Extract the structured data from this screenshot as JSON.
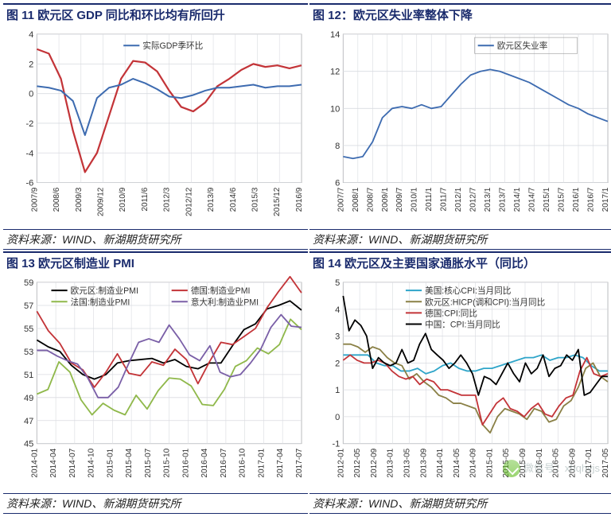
{
  "source_label": "资料来源：WIND、新湖期货研究所",
  "watermark": "微信号：xhqhyjs",
  "charts": {
    "c11": {
      "title": "图 11 欧元区 GDP 同比和环比均有所回升",
      "type": "line",
      "legend": [
        {
          "label": "实际GDP季环比",
          "color": "#3d6bb0"
        }
      ],
      "xticks": [
        "2007/9",
        "2008/6",
        "2009/3",
        "2009/12",
        "2010/9",
        "2011/6",
        "2012/3",
        "2012/12",
        "2013/9",
        "2014/6",
        "2015/3",
        "2015/12",
        "2016/9"
      ],
      "ylim": [
        -6,
        4
      ],
      "ytick_step": 2,
      "grid_color": "#d9dbe0",
      "axis_color": "#666",
      "bg": "#ffffff",
      "series": [
        {
          "name": "red",
          "color": "#c33438",
          "width": 2.2,
          "data": [
            3.0,
            2.7,
            1.0,
            -2.5,
            -5.3,
            -4.0,
            -1.5,
            1.0,
            2.2,
            2.1,
            1.5,
            0.2,
            -0.9,
            -1.2,
            -0.6,
            0.5,
            1.0,
            1.6,
            2.0,
            1.8,
            1.9,
            1.7,
            1.9
          ]
        },
        {
          "name": "blue",
          "color": "#3d6bb0",
          "width": 2.0,
          "data": [
            0.5,
            0.4,
            0.2,
            -0.5,
            -2.8,
            -0.3,
            0.4,
            0.6,
            1.0,
            0.7,
            0.3,
            -0.2,
            -0.3,
            -0.1,
            0.2,
            0.4,
            0.4,
            0.5,
            0.6,
            0.4,
            0.5,
            0.5,
            0.6
          ]
        }
      ]
    },
    "c12": {
      "title": "图 12：欧元区失业率整体下降",
      "type": "line",
      "legend": [
        {
          "label": "欧元区失业率",
          "color": "#3d6bb0"
        }
      ],
      "xticks": [
        "2007/7",
        "2008/1",
        "2008/7",
        "2009/1",
        "2009/7",
        "2010/1",
        "2011/1",
        "2011/7",
        "2012/1",
        "2012/7",
        "2013/1",
        "2013/7",
        "2014/1",
        "2014/7",
        "2015/1",
        "2015/7",
        "2016/1",
        "2016/7",
        "2017/1"
      ],
      "ylim": [
        6,
        14
      ],
      "ytick_step": 2,
      "grid_color": "#d9dbe0",
      "axis_color": "#666",
      "bg": "#ffffff",
      "series": [
        {
          "name": "u",
          "color": "#3d6bb0",
          "width": 1.8,
          "data": [
            7.4,
            7.3,
            7.4,
            8.2,
            9.5,
            10.0,
            10.1,
            10.0,
            10.2,
            10.0,
            10.1,
            10.7,
            11.3,
            11.8,
            12.0,
            12.1,
            12.0,
            11.8,
            11.6,
            11.4,
            11.1,
            10.8,
            10.5,
            10.2,
            10.0,
            9.7,
            9.5,
            9.3
          ]
        }
      ]
    },
    "c13": {
      "title": "图 13 欧元区制造业 PMI",
      "type": "line",
      "legend": [
        {
          "label": "欧元区:制造业PMI",
          "color": "#000"
        },
        {
          "label": "德国:制造业PMI",
          "color": "#c33438"
        },
        {
          "label": "法国:制造业PMI",
          "color": "#8fb84a"
        },
        {
          "label": "意大利:制造业PMI",
          "color": "#7a5fa7"
        }
      ],
      "xticks": [
        "2014-01",
        "2014-04",
        "2014-07",
        "2014-10",
        "2015-01",
        "2015-04",
        "2015-07",
        "2015-10",
        "2016-01",
        "2016-04",
        "2016-07",
        "2016-10",
        "2017-01",
        "2017-04",
        "2017-07"
      ],
      "ylim": [
        45,
        59
      ],
      "ytick_step": 2,
      "grid_color": "#d9dbe0",
      "axis_color": "#666",
      "bg": "#ffffff",
      "series": [
        {
          "color": "#000",
          "width": 1.8,
          "data": [
            54.0,
            53.4,
            53.0,
            51.8,
            51.0,
            50.6,
            51.0,
            52.0,
            52.2,
            52.3,
            52.4,
            52.0,
            52.3,
            51.7,
            51.5,
            52.0,
            52.0,
            53.5,
            54.9,
            55.4,
            56.7,
            57.0,
            57.4,
            56.6
          ]
        },
        {
          "color": "#c33438",
          "width": 1.8,
          "data": [
            56.5,
            54.8,
            53.7,
            52.0,
            51.4,
            49.9,
            51.2,
            52.8,
            51.1,
            50.9,
            52.1,
            51.8,
            53.2,
            52.3,
            50.2,
            52.1,
            53.8,
            53.6,
            54.3,
            55.0,
            56.8,
            58.2,
            59.5,
            58.1
          ]
        },
        {
          "color": "#8fb84a",
          "width": 1.8,
          "data": [
            49.3,
            49.7,
            52.1,
            51.2,
            48.8,
            47.5,
            48.5,
            47.9,
            47.5,
            49.2,
            48.0,
            49.6,
            50.7,
            50.6,
            50.0,
            48.4,
            48.3,
            49.7,
            51.7,
            52.2,
            53.3,
            52.8,
            53.6,
            55.8,
            54.9
          ]
        },
        {
          "color": "#7a5fa7",
          "width": 1.8,
          "data": [
            53.1,
            53.1,
            52.6,
            52.2,
            51.9,
            50.7,
            49.0,
            49.0,
            49.9,
            51.9,
            53.8,
            54.1,
            53.8,
            55.3,
            54.1,
            52.7,
            52.2,
            53.5,
            51.2,
            50.8,
            51.0,
            52.0,
            53.2,
            55.1,
            56.2,
            55.2,
            55.1
          ]
        }
      ]
    },
    "c14": {
      "title": "图 14 欧元区及主要国家通胀水平（同比）",
      "type": "line",
      "legend": [
        {
          "label": "美国:核心CPI:当月同比",
          "color": "#2fa5c9"
        },
        {
          "label": "欧元区:HICP(调和CPI):当月同比",
          "color": "#8a8046"
        },
        {
          "label": "德国:CPI:同比",
          "color": "#c33438"
        },
        {
          "label": "中国：CPI:当月同比",
          "color": "#000"
        }
      ],
      "xticks": [
        "2012-01",
        "2012-05",
        "2012-09",
        "2013-01",
        "2013-05",
        "2013-09",
        "2014-01",
        "2014-05",
        "2014-09",
        "2015-01",
        "2015-05",
        "2015-09",
        "2016-01",
        "2016-05",
        "2016-09",
        "2017-01",
        "2017-05"
      ],
      "ylim": [
        -1,
        5
      ],
      "ytick_step": 1,
      "grid_color": "#d9dbe0",
      "axis_color": "#666",
      "bg": "#ffffff",
      "series": [
        {
          "color": "#2fa5c9",
          "width": 1.8,
          "data": [
            2.3,
            2.3,
            2.3,
            2.3,
            2.0,
            1.9,
            1.9,
            1.7,
            1.7,
            1.8,
            1.6,
            1.7,
            1.9,
            2.0,
            1.8,
            1.7,
            1.7,
            1.8,
            1.8,
            1.9,
            2.0,
            2.1,
            2.2,
            2.2,
            2.3,
            2.1,
            2.2,
            2.2,
            2.3,
            2.2,
            1.9,
            1.7,
            1.7
          ]
        },
        {
          "color": "#8a8046",
          "width": 1.8,
          "data": [
            2.7,
            2.7,
            2.6,
            2.4,
            2.6,
            2.5,
            2.2,
            2.0,
            1.9,
            1.4,
            1.6,
            1.3,
            1.1,
            0.8,
            0.7,
            0.5,
            0.5,
            0.4,
            0.3,
            -0.3,
            -0.6,
            0.0,
            0.3,
            0.2,
            0.1,
            -0.1,
            0.3,
            0.2,
            -0.2,
            -0.1,
            0.4,
            0.6,
            1.1,
            1.8,
            2.0,
            1.5,
            1.3
          ]
        },
        {
          "color": "#c33438",
          "width": 1.8,
          "data": [
            2.1,
            2.3,
            2.1,
            2.0,
            2.0,
            2.1,
            2.0,
            1.7,
            1.5,
            1.4,
            1.5,
            1.2,
            1.4,
            1.3,
            1.0,
            1.0,
            0.9,
            0.8,
            0.8,
            0.8,
            -0.3,
            0.1,
            0.5,
            0.7,
            0.3,
            0.2,
            0.0,
            0.3,
            0.5,
            0.1,
            0.0,
            0.4,
            0.7,
            0.8,
            1.7,
            2.2,
            1.6,
            1.5,
            1.6
          ]
        },
        {
          "color": "#000",
          "width": 1.8,
          "data": [
            4.5,
            3.2,
            3.6,
            3.4,
            3.0,
            1.8,
            2.2,
            2.0,
            1.9,
            2.0,
            2.5,
            2.0,
            2.1,
            2.7,
            3.1,
            2.5,
            2.3,
            2.1,
            1.8,
            2.0,
            2.3,
            2.0,
            1.6,
            0.8,
            1.5,
            1.4,
            1.2,
            1.6,
            2.0,
            1.6,
            1.3,
            2.0,
            1.6,
            1.8,
            2.3,
            1.5,
            1.8,
            1.9,
            2.3,
            2.1,
            2.5,
            0.8,
            0.9,
            1.2,
            1.5,
            1.5
          ]
        }
      ]
    }
  }
}
